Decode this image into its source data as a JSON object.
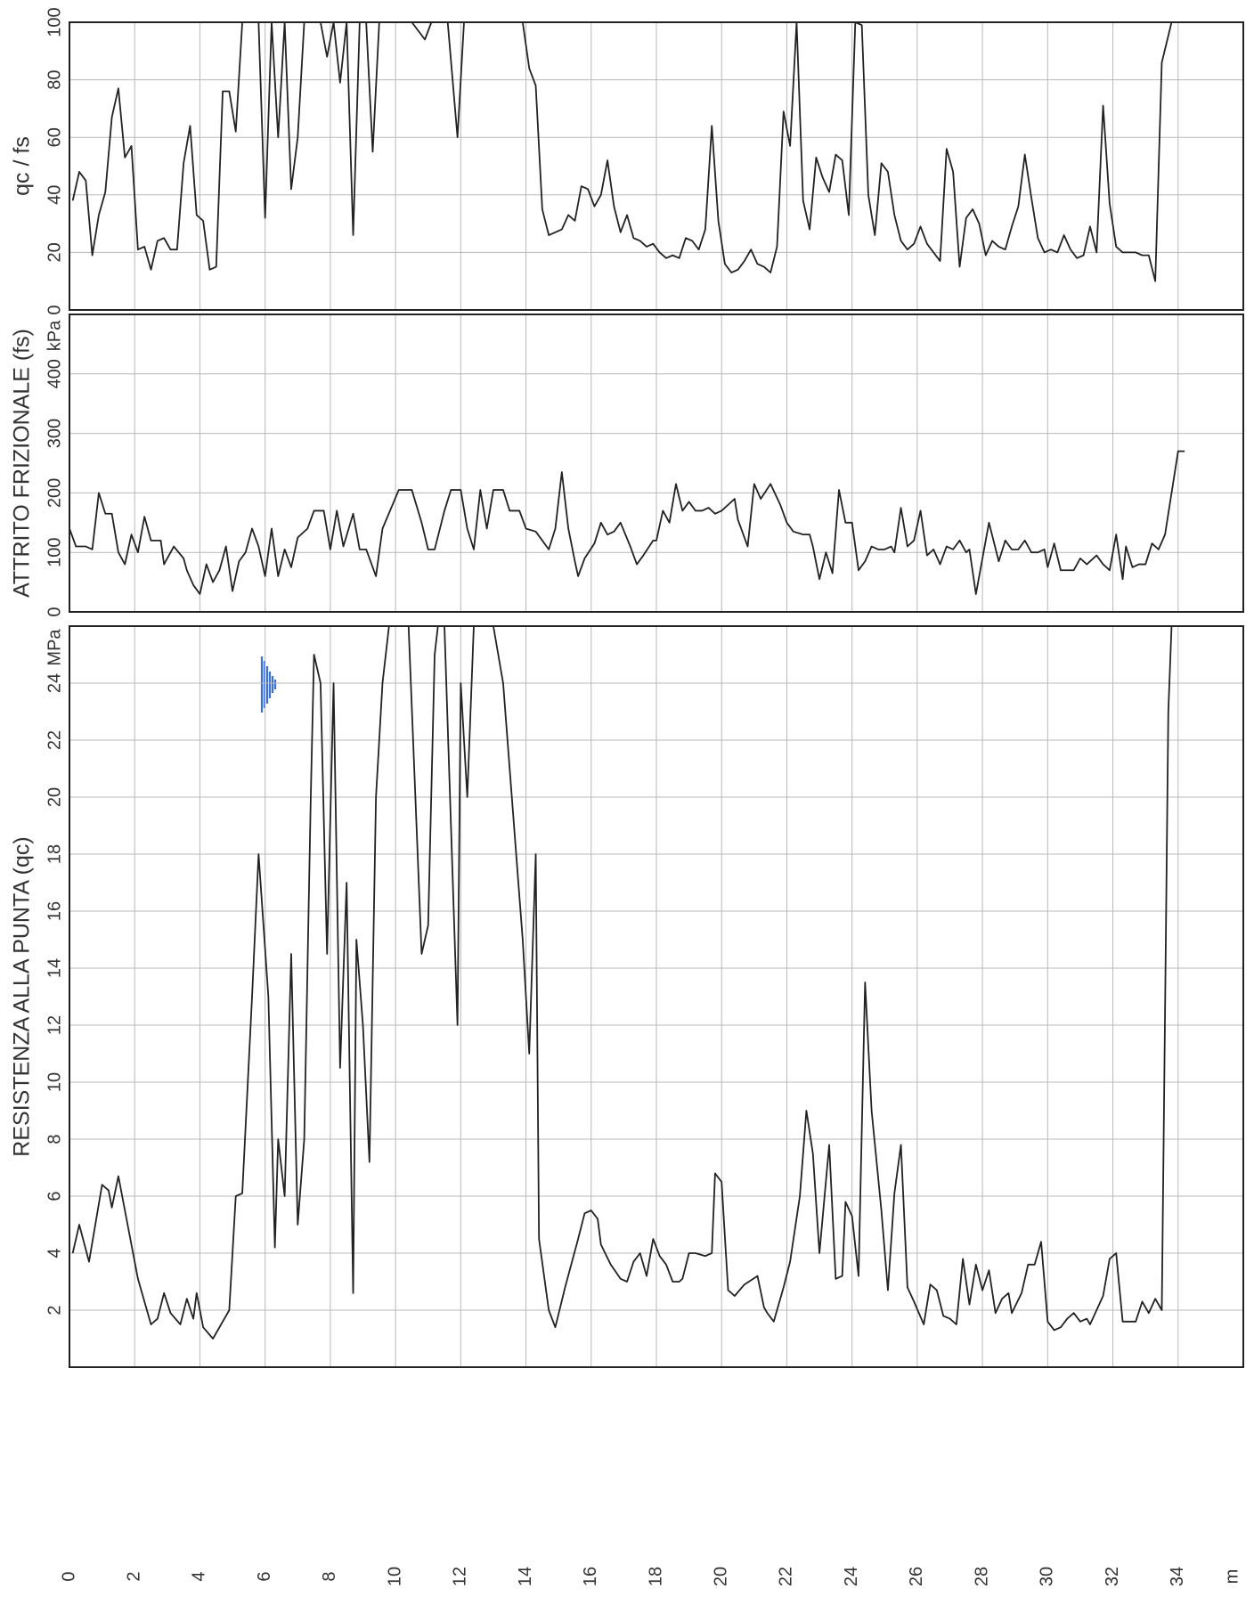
{
  "chart_data": [
    {
      "type": "line",
      "ylabel": "qc / fs",
      "color": "#222222",
      "xlim": [
        0,
        36
      ],
      "xticks": [
        2,
        4,
        6,
        8,
        10,
        12,
        14,
        16,
        18,
        20,
        22,
        24,
        26,
        28,
        30,
        32,
        34
      ],
      "xtick_labels": false,
      "ylim": [
        0,
        100
      ],
      "yticks": [
        0,
        20,
        40,
        60,
        80,
        100
      ],
      "grid": true,
      "x": [
        0.1,
        0.3,
        0.5,
        0.7,
        0.9,
        1.1,
        1.3,
        1.5,
        1.7,
        1.9,
        2.1,
        2.3,
        2.5,
        2.7,
        2.9,
        3.1,
        3.3,
        3.5,
        3.7,
        3.9,
        4.1,
        4.3,
        4.5,
        4.7,
        4.9,
        5.1,
        5.3,
        5.6,
        5.8,
        6.0,
        6.2,
        6.4,
        6.6,
        6.8,
        7.0,
        7.2,
        7.5,
        7.7,
        7.9,
        8.1,
        8.3,
        8.5,
        8.7,
        8.9,
        9.1,
        9.3,
        9.5,
        10.0,
        10.5,
        10.9,
        11.1,
        11.6,
        11.9,
        12.1,
        12.5,
        13.0,
        13.5,
        13.9,
        14.1,
        14.3,
        14.5,
        14.7,
        14.9,
        15.1,
        15.3,
        15.5,
        15.7,
        15.9,
        16.1,
        16.3,
        16.5,
        16.7,
        16.9,
        17.1,
        17.3,
        17.5,
        17.7,
        17.9,
        18.1,
        18.3,
        18.5,
        18.7,
        18.9,
        19.1,
        19.3,
        19.5,
        19.7,
        19.9,
        20.1,
        20.3,
        20.5,
        20.7,
        20.9,
        21.1,
        21.3,
        21.5,
        21.7,
        21.9,
        22.1,
        22.3,
        22.5,
        22.7,
        22.9,
        23.1,
        23.3,
        23.5,
        23.7,
        23.9,
        24.1,
        24.3,
        24.5,
        24.7,
        24.9,
        25.1,
        25.3,
        25.5,
        25.7,
        25.9,
        26.1,
        26.3,
        26.5,
        26.7,
        26.9,
        27.1,
        27.3,
        27.5,
        27.7,
        27.9,
        28.1,
        28.3,
        28.5,
        28.7,
        28.9,
        29.1,
        29.3,
        29.5,
        29.7,
        29.9,
        30.1,
        30.3,
        30.5,
        30.7,
        30.9,
        31.1,
        31.3,
        31.5,
        31.7,
        31.9,
        32.1,
        32.3,
        32.5,
        32.7,
        32.9,
        33.1,
        33.3,
        33.5,
        33.8
      ],
      "values": [
        38,
        48,
        45,
        19,
        33,
        41,
        67,
        77,
        53,
        57,
        21,
        22,
        14,
        24,
        25,
        21,
        21,
        51,
        64,
        33,
        31,
        14,
        15,
        76,
        76,
        62,
        100,
        100,
        100,
        32,
        100,
        60,
        100,
        42,
        60,
        100,
        100,
        100,
        88,
        100,
        79,
        100,
        26,
        100,
        100,
        55,
        100,
        100,
        100,
        94,
        100,
        100,
        60,
        100,
        100,
        100,
        100,
        100,
        84,
        78,
        35,
        26,
        27,
        28,
        33,
        31,
        43,
        42,
        36,
        40,
        52,
        36,
        27,
        33,
        25,
        24,
        22,
        23,
        20,
        18,
        19,
        18,
        25,
        24,
        21,
        28,
        64,
        31,
        16,
        13,
        14,
        17,
        21,
        16,
        15,
        13,
        22,
        69,
        57,
        100,
        38,
        28,
        53,
        46,
        41,
        54,
        52,
        33,
        100,
        99,
        40,
        26,
        51,
        48,
        33,
        24,
        21,
        23,
        29,
        23,
        20,
        17,
        56,
        48,
        15,
        32,
        35,
        30,
        19,
        24,
        22,
        21,
        29,
        36,
        54,
        39,
        25,
        20,
        21,
        20,
        26,
        21,
        18,
        19,
        29,
        20,
        71,
        37,
        22,
        20,
        20,
        20,
        19,
        19,
        10,
        86,
        100
      ]
    },
    {
      "type": "line",
      "ylabel": "ATTRITO FRIZIONALE (fs)",
      "unit": "kPa",
      "color": "#222222",
      "xlim": [
        0,
        36
      ],
      "xticks": [
        2,
        4,
        6,
        8,
        10,
        12,
        14,
        16,
        18,
        20,
        22,
        24,
        26,
        28,
        30,
        32,
        34
      ],
      "xtick_labels": false,
      "ylim": [
        0,
        500
      ],
      "yticks": [
        0,
        100,
        200,
        300,
        400
      ],
      "grid": true,
      "x": [
        0.0,
        0.2,
        0.5,
        0.7,
        0.9,
        1.1,
        1.3,
        1.5,
        1.7,
        1.9,
        2.1,
        2.3,
        2.5,
        2.8,
        2.9,
        3.2,
        3.5,
        3.6,
        3.8,
        4.0,
        4.2,
        4.4,
        4.6,
        4.8,
        5.0,
        5.2,
        5.4,
        5.6,
        5.8,
        6.0,
        6.2,
        6.4,
        6.6,
        6.8,
        7.0,
        7.3,
        7.5,
        7.8,
        8.0,
        8.2,
        8.4,
        8.7,
        8.9,
        9.1,
        9.4,
        9.6,
        10.1,
        10.5,
        10.8,
        11.0,
        11.2,
        11.5,
        11.7,
        12.0,
        12.2,
        12.4,
        12.6,
        12.8,
        13.0,
        13.3,
        13.5,
        13.8,
        14.0,
        14.3,
        14.5,
        14.7,
        14.9,
        15.1,
        15.3,
        15.5,
        15.6,
        15.8,
        16.1,
        16.3,
        16.5,
        16.7,
        16.9,
        17.2,
        17.4,
        17.6,
        17.9,
        18.0,
        18.2,
        18.4,
        18.6,
        18.8,
        19.0,
        19.2,
        19.4,
        19.6,
        19.8,
        20.0,
        20.2,
        20.4,
        20.5,
        20.8,
        21.0,
        21.2,
        21.5,
        21.8,
        22.0,
        22.2,
        22.5,
        22.7,
        22.8,
        23.0,
        23.2,
        23.4,
        23.6,
        23.8,
        24.0,
        24.2,
        24.4,
        24.6,
        24.8,
        25.0,
        25.2,
        25.3,
        25.5,
        25.7,
        25.9,
        26.1,
        26.3,
        26.5,
        26.7,
        26.9,
        27.1,
        27.3,
        27.5,
        27.6,
        27.8,
        28.0,
        28.2,
        28.5,
        28.7,
        28.9,
        29.1,
        29.3,
        29.5,
        29.7,
        29.9,
        30.0,
        30.2,
        30.4,
        30.6,
        30.8,
        31.0,
        31.2,
        31.5,
        31.7,
        31.9,
        32.1,
        32.3,
        32.4,
        32.6,
        32.8,
        33.0,
        33.2,
        33.4,
        33.6,
        33.8,
        34.0,
        34.2
      ],
      "values": [
        140,
        110,
        110,
        105,
        200,
        165,
        165,
        100,
        80,
        130,
        100,
        160,
        120,
        120,
        80,
        110,
        90,
        70,
        45,
        30,
        80,
        50,
        70,
        110,
        35,
        85,
        100,
        140,
        110,
        60,
        140,
        60,
        105,
        75,
        125,
        140,
        170,
        170,
        105,
        170,
        110,
        165,
        105,
        105,
        60,
        140,
        205,
        205,
        150,
        105,
        105,
        170,
        205,
        205,
        140,
        105,
        205,
        140,
        205,
        205,
        170,
        170,
        140,
        135,
        120,
        105,
        140,
        235,
        140,
        85,
        60,
        90,
        115,
        150,
        130,
        135,
        150,
        110,
        80,
        95,
        120,
        120,
        170,
        150,
        215,
        170,
        185,
        170,
        170,
        175,
        165,
        170,
        180,
        190,
        155,
        110,
        215,
        190,
        215,
        180,
        150,
        135,
        130,
        130,
        110,
        55,
        100,
        65,
        205,
        150,
        150,
        70,
        85,
        110,
        105,
        105,
        110,
        100,
        175,
        110,
        120,
        170,
        95,
        105,
        80,
        110,
        105,
        120,
        100,
        105,
        30,
        90,
        150,
        85,
        120,
        105,
        105,
        120,
        100,
        100,
        105,
        75,
        115,
        70,
        70,
        70,
        90,
        80,
        95,
        80,
        70,
        130,
        55,
        110,
        75,
        80,
        80,
        115,
        105,
        130,
        200,
        270,
        270
      ]
    },
    {
      "type": "line",
      "ylabel": "RESISTENZA ALLA PUNTA (qc)",
      "unit": "MPa",
      "xlabel": "m",
      "color": "#222222",
      "xlim": [
        0,
        36
      ],
      "xticks": [
        0,
        2,
        4,
        6,
        8,
        10,
        12,
        14,
        16,
        18,
        20,
        22,
        24,
        26,
        28,
        30,
        32,
        34
      ],
      "xtick_labels": true,
      "ylim": [
        0,
        26
      ],
      "yticks": [
        2,
        4,
        6,
        8,
        10,
        12,
        14,
        16,
        18,
        20,
        22,
        24
      ],
      "grid": true,
      "x": [
        0.1,
        0.3,
        0.6,
        1.0,
        1.2,
        1.3,
        1.5,
        1.7,
        2.1,
        2.5,
        2.7,
        2.9,
        3.1,
        3.4,
        3.6,
        3.8,
        3.9,
        4.1,
        4.4,
        4.9,
        5.1,
        5.3,
        5.6,
        5.8,
        6.1,
        6.3,
        6.4,
        6.6,
        6.8,
        7.0,
        7.2,
        7.4,
        7.5,
        7.7,
        7.9,
        8.1,
        8.3,
        8.5,
        8.7,
        8.8,
        9.0,
        9.2,
        9.4,
        9.6,
        9.8,
        10.1,
        10.4,
        10.8,
        11.0,
        11.2,
        11.3,
        11.5,
        11.9,
        12.0,
        12.2,
        12.4,
        12.7,
        13.0,
        13.3,
        13.7,
        13.9,
        14.1,
        14.3,
        14.4,
        14.7,
        14.9,
        15.2,
        15.6,
        15.8,
        16.0,
        16.2,
        16.3,
        16.6,
        16.9,
        17.1,
        17.3,
        17.5,
        17.7,
        17.9,
        18.1,
        18.3,
        18.5,
        18.7,
        18.8,
        19.0,
        19.2,
        19.5,
        19.7,
        19.8,
        20.0,
        20.2,
        20.4,
        20.7,
        21.1,
        21.3,
        21.4,
        21.6,
        21.9,
        22.1,
        22.4,
        22.6,
        22.8,
        23.0,
        23.3,
        23.5,
        23.7,
        23.8,
        24.0,
        24.2,
        24.4,
        24.6,
        24.9,
        25.1,
        25.3,
        25.5,
        25.7,
        25.9,
        26.2,
        26.4,
        26.6,
        26.8,
        27.0,
        27.2,
        27.4,
        27.6,
        27.8,
        28.0,
        28.2,
        28.4,
        28.6,
        28.8,
        28.9,
        29.2,
        29.4,
        29.6,
        29.8,
        30.0,
        30.2,
        30.4,
        30.6,
        30.8,
        31.0,
        31.2,
        31.3,
        31.5,
        31.7,
        31.9,
        32.1,
        32.3,
        32.5,
        32.7,
        32.9,
        33.1,
        33.3,
        33.5,
        33.7,
        33.8,
        34.0
      ],
      "values": [
        4.0,
        5.0,
        3.7,
        6.4,
        6.2,
        5.6,
        6.7,
        5.5,
        3.1,
        1.5,
        1.7,
        2.6,
        1.9,
        1.5,
        2.4,
        1.7,
        2.6,
        1.4,
        1.0,
        2.0,
        6.0,
        6.1,
        13,
        18,
        13,
        4.2,
        8.0,
        6.0,
        14.5,
        5.0,
        8,
        20,
        25,
        24,
        14.5,
        24,
        10.5,
        17,
        2.6,
        15,
        12,
        7.2,
        20,
        24,
        26,
        26,
        26,
        14.5,
        15.5,
        25,
        26,
        26,
        12,
        24,
        20,
        26,
        26,
        26,
        24,
        18,
        15,
        11,
        18,
        4.5,
        2.0,
        1.4,
        2.8,
        4.5,
        5.4,
        5.5,
        5.2,
        4.3,
        3.6,
        3.1,
        3.0,
        3.7,
        4.0,
        3.2,
        4.5,
        3.9,
        3.6,
        3.0,
        3.0,
        3.1,
        4.0,
        4.0,
        3.9,
        4.0,
        6.8,
        6.5,
        2.7,
        2.5,
        2.9,
        3.2,
        2.1,
        1.9,
        1.6,
        2.8,
        3.7,
        6,
        9,
        7.5,
        4.0,
        7.8,
        3.1,
        3.2,
        5.8,
        5.3,
        3.2,
        13.5,
        9,
        5.5,
        2.7,
        6.1,
        7.8,
        2.8,
        2.3,
        1.5,
        2.9,
        2.7,
        1.8,
        1.7,
        1.5,
        3.8,
        2.2,
        3.6,
        2.7,
        3.4,
        1.9,
        2.4,
        2.6,
        1.9,
        2.6,
        3.6,
        3.6,
        4.4,
        1.6,
        1.3,
        1.4,
        1.7,
        1.9,
        1.6,
        1.7,
        1.5,
        2.0,
        2.5,
        3.8,
        4.0,
        1.6,
        1.6,
        1.6,
        2.3,
        1.9,
        2.4,
        2.0,
        23,
        26,
        26
      ]
    }
  ]
}
